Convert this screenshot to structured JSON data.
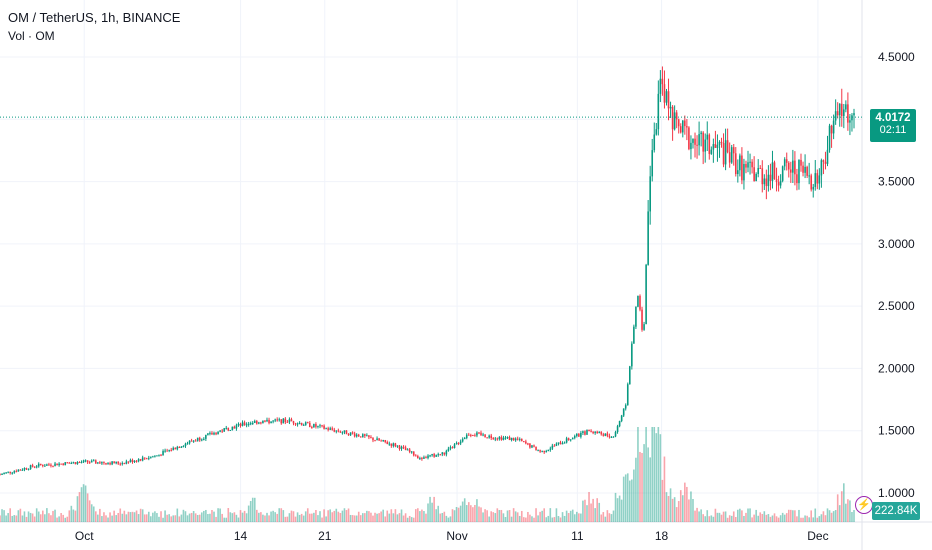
{
  "legend": {
    "symbol": "OM / TetherUS, 1h, BINANCE",
    "volume_label": "Vol · OM"
  },
  "current_price": {
    "value": "4.0172",
    "countdown": "02:11",
    "color": "#089981"
  },
  "volume_readout": {
    "value": "222.84K",
    "color": "#26a69a"
  },
  "colors": {
    "up": "#089981",
    "down": "#f23645",
    "grid": "#f0f3fa",
    "price_line": "#089981"
  },
  "chart_data": {
    "type": "candlestick",
    "title": "OM / TetherUS, 1h, BINANCE",
    "y_axis": {
      "ticks": [
        1.0,
        1.5,
        2.0,
        2.5,
        3.0,
        3.5,
        4.0,
        4.5
      ],
      "tick_labels": [
        "1.0000",
        "1.5000",
        "2.0000",
        "2.5000",
        "3.0000",
        "3.5000",
        "4.0000",
        "4.5000"
      ],
      "range": [
        0.9,
        4.65
      ],
      "position": "right"
    },
    "x_axis": {
      "tick_labels": [
        "Oct",
        "14",
        "21",
        "Nov",
        "11",
        "18",
        "Dec"
      ],
      "tick_dates": [
        "2024-10-01",
        "2024-10-14",
        "2024-10-21",
        "2024-11-01",
        "2024-11-11",
        "2024-11-18",
        "2024-12-01"
      ],
      "range": [
        "2024-09-24",
        "2024-12-04"
      ]
    },
    "grid": true,
    "price_path": [
      [
        "2024-09-24",
        1.15
      ],
      [
        "2024-09-27",
        1.22
      ],
      [
        "2024-10-01",
        1.25
      ],
      [
        "2024-10-04",
        1.24
      ],
      [
        "2024-10-07",
        1.3
      ],
      [
        "2024-10-10",
        1.42
      ],
      [
        "2024-10-13",
        1.52
      ],
      [
        "2024-10-15",
        1.57
      ],
      [
        "2024-10-18",
        1.58
      ],
      [
        "2024-10-21",
        1.52
      ],
      [
        "2024-10-24",
        1.46
      ],
      [
        "2024-10-27",
        1.38
      ],
      [
        "2024-10-29",
        1.28
      ],
      [
        "2024-10-31",
        1.32
      ],
      [
        "2024-11-02",
        1.48
      ],
      [
        "2024-11-04",
        1.45
      ],
      [
        "2024-11-06",
        1.43
      ],
      [
        "2024-11-08",
        1.33
      ],
      [
        "2024-11-10",
        1.42
      ],
      [
        "2024-11-12",
        1.5
      ],
      [
        "2024-11-14",
        1.45
      ],
      [
        "2024-11-15",
        1.7
      ],
      [
        "2024-11-16",
        2.6
      ],
      [
        "2024-11-16T12",
        2.25
      ],
      [
        "2024-11-17",
        3.6
      ],
      [
        "2024-11-18",
        4.3
      ],
      [
        "2024-11-19",
        3.95
      ],
      [
        "2024-11-21",
        3.8
      ],
      [
        "2024-11-23",
        3.75
      ],
      [
        "2024-11-25",
        3.58
      ],
      [
        "2024-11-27",
        3.55
      ],
      [
        "2024-11-29",
        3.6
      ],
      [
        "2024-12-01",
        3.52
      ],
      [
        "2024-12-02",
        3.88
      ],
      [
        "2024-12-03",
        4.08
      ],
      [
        "2024-12-04",
        4.02
      ]
    ],
    "volume_spikes": [
      [
        "2024-10-01",
        0.9
      ],
      [
        "2024-10-15",
        0.4
      ],
      [
        "2024-10-30",
        0.5
      ],
      [
        "2024-11-02",
        0.8
      ],
      [
        "2024-11-12",
        0.7
      ],
      [
        "2024-11-15",
        1.4
      ],
      [
        "2024-11-16",
        2.6
      ],
      [
        "2024-11-17",
        3.0
      ],
      [
        "2024-11-18",
        2.2
      ],
      [
        "2024-11-20",
        1.1
      ],
      [
        "2024-12-03",
        1.0
      ]
    ]
  }
}
